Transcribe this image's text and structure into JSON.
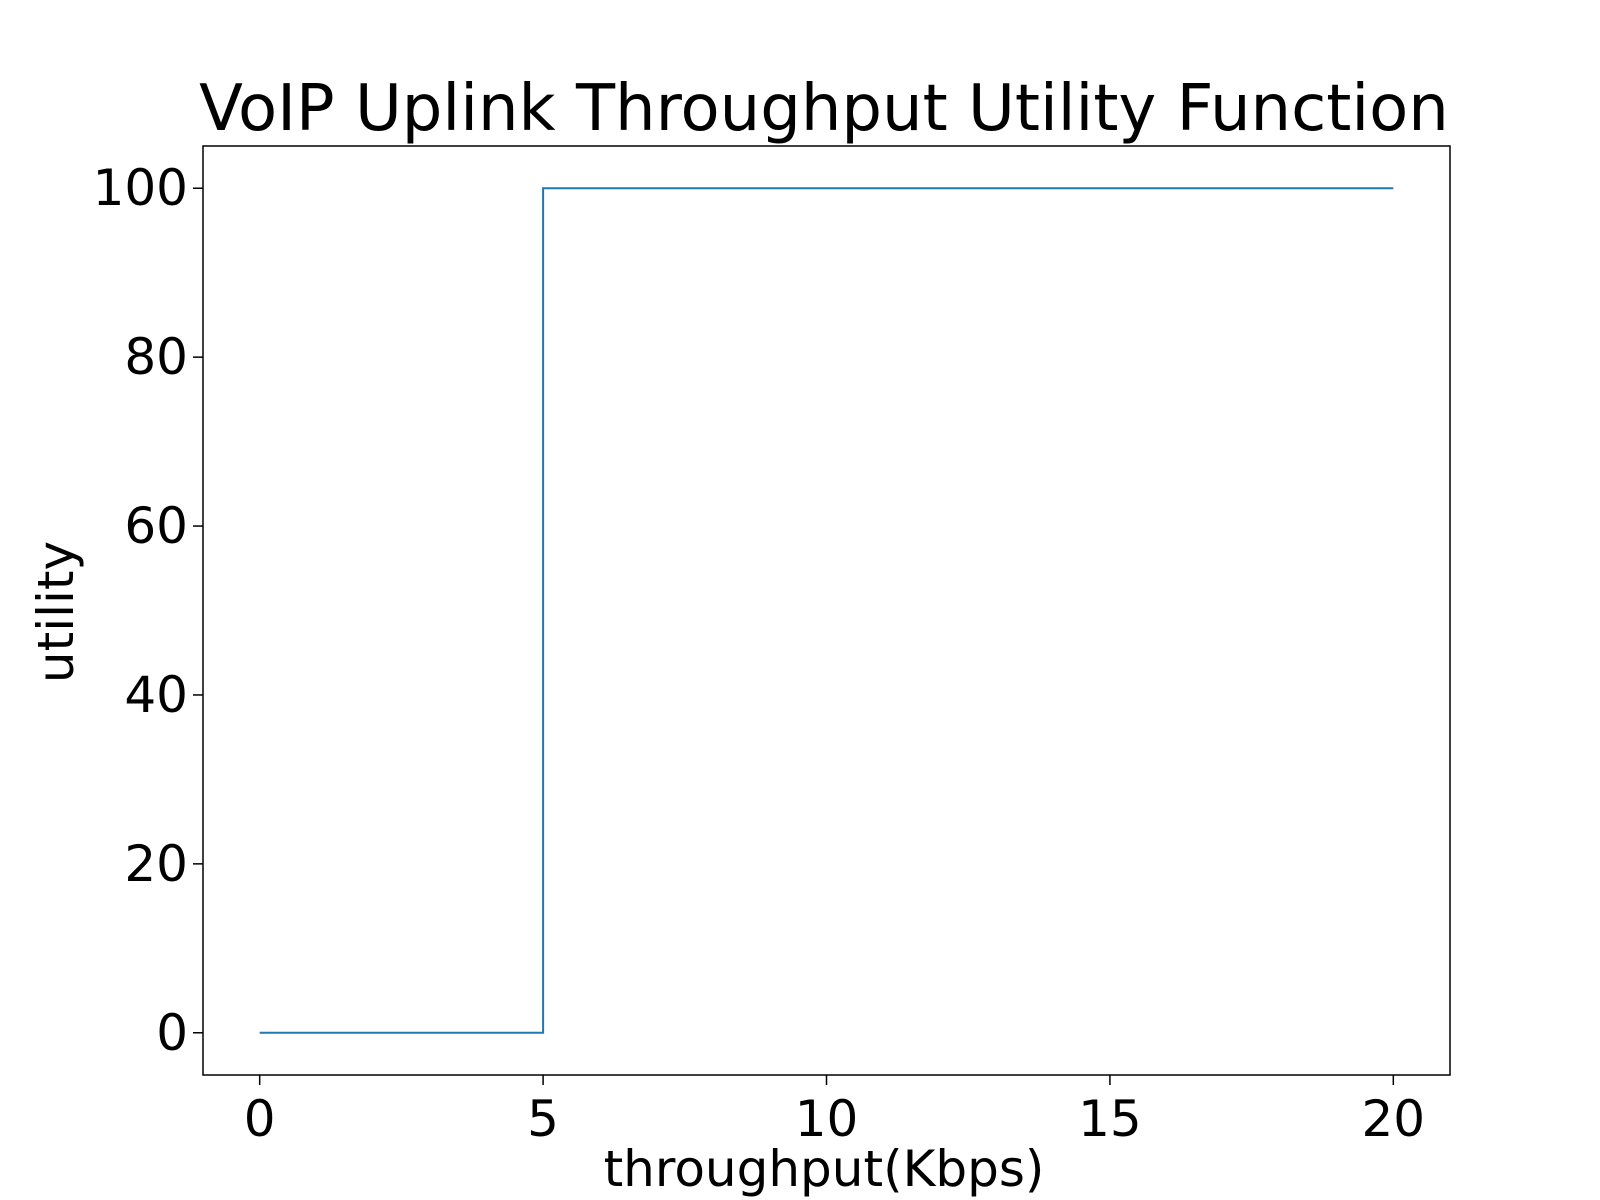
{
  "chart_data": {
    "type": "line",
    "title": "VoIP Uplink Throughput Utility Function",
    "xlabel": "throughput(Kbps)",
    "ylabel": "utility",
    "xlim": [
      -1,
      21
    ],
    "ylim": [
      -5,
      105
    ],
    "xticks": [
      0,
      5,
      10,
      15,
      20
    ],
    "yticks": [
      0,
      20,
      40,
      60,
      80,
      100
    ],
    "grid": false,
    "series": [
      {
        "color": "#1f77b4",
        "x": [
          0,
          5,
          5,
          20
        ],
        "y": [
          0,
          0,
          100,
          100
        ]
      }
    ]
  }
}
